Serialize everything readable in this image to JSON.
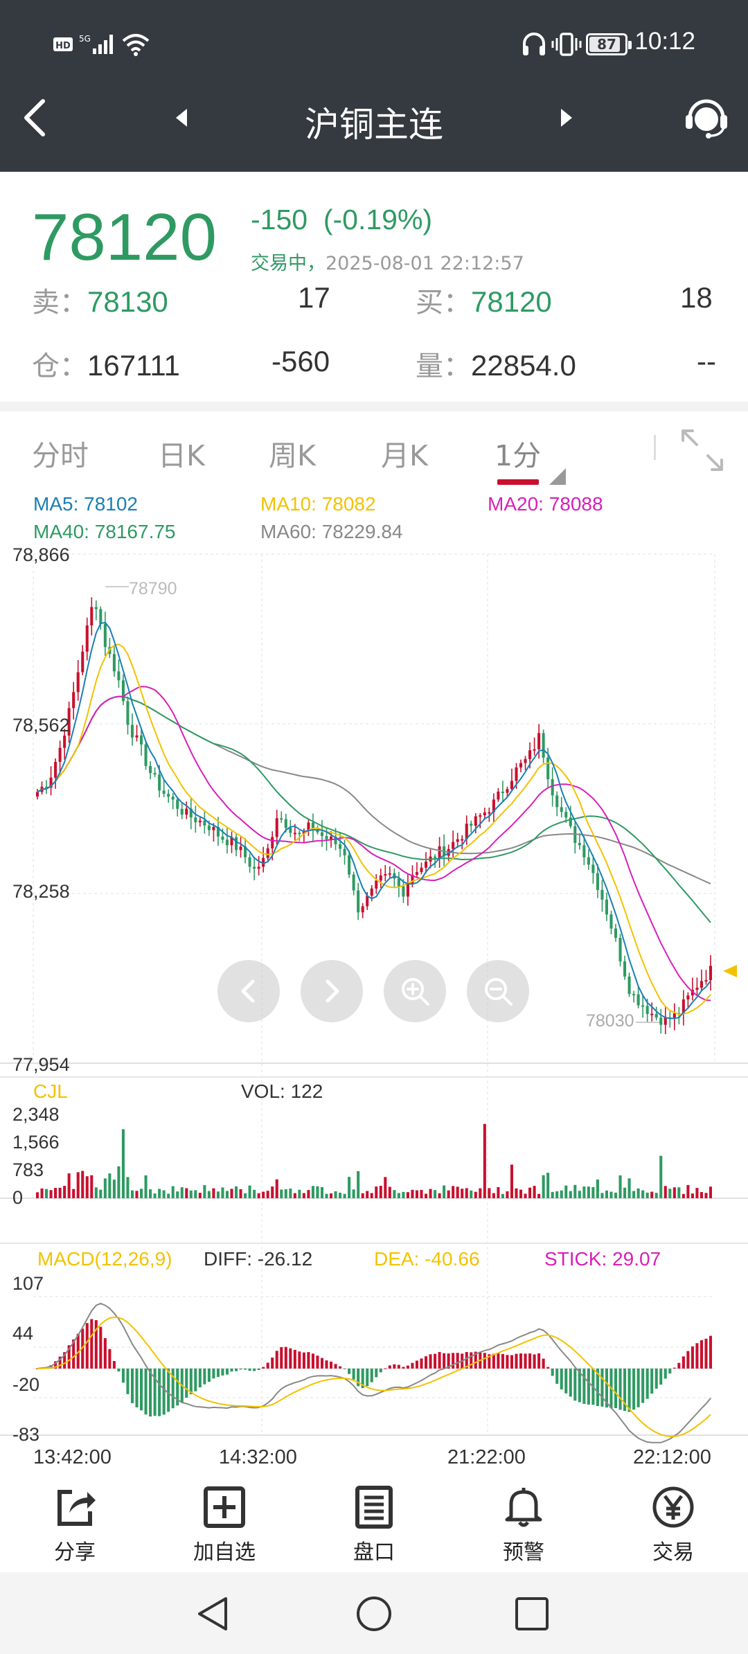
{
  "status_bar": {
    "time": "10:12",
    "battery": "87",
    "battery_level": 0.87,
    "icons": [
      "hd-icon",
      "5g-signal-icon",
      "wifi-icon",
      "headphones-icon",
      "vibrate-icon",
      "battery-icon"
    ]
  },
  "header": {
    "title": "沪铜主连",
    "back_icon": "back-arrow-icon",
    "prev_icon": "triangle-left-icon",
    "next_icon": "triangle-right-icon",
    "service_icon": "customer-service-icon"
  },
  "quote": {
    "price": "78120",
    "change": "-150",
    "change_pct": "(-0.19%)",
    "status": "交易中，",
    "datetime": "2025-08-01 22:12:57",
    "sell_label": "卖：",
    "sell_price": "78130",
    "sell_qty": "17",
    "buy_label": "买：",
    "buy_price": "78120",
    "buy_qty": "18",
    "oi_label": "仓：",
    "oi_value": "167111",
    "oi_change": "-560",
    "vol_label": "量：",
    "vol_value": "22854.0",
    "vol_extra": "--"
  },
  "tabs": [
    {
      "label": "分时"
    },
    {
      "label": "日K"
    },
    {
      "label": "周K"
    },
    {
      "label": "月K"
    },
    {
      "label": "1分",
      "active": true
    }
  ],
  "ma_legend": {
    "ma5": "MA5: 78102",
    "ma10": "MA10: 78082",
    "ma20": "MA20: 78088",
    "ma40": "MA40: 78167.75",
    "ma60": "MA60: 78229.84"
  },
  "colors": {
    "up": "#c8102e",
    "down": "#2e9a62",
    "ma5": "#1a7fb5",
    "ma10": "#f2c200",
    "ma20": "#d81fb8",
    "ma40": "#2e9a62",
    "ma60": "#888888"
  },
  "price_axis": {
    "max": "78,866",
    "upper_mid": "78,562",
    "lower_mid": "78,258",
    "min": "77,954",
    "high_mark": "78790",
    "low_mark": "78030"
  },
  "volume": {
    "title": "CJL",
    "vol_text": "VOL: 122",
    "axis": [
      "2,348",
      "1,566",
      "783",
      "0"
    ]
  },
  "macd": {
    "title": "MACD(12,26,9)",
    "diff": "DIFF: -26.12",
    "dea": "DEA: -40.66",
    "stick": "STICK: 29.07",
    "axis": [
      "107",
      "44",
      "-20",
      "-83"
    ]
  },
  "time_axis": [
    "13:42:00",
    "14:32:00",
    "21:22:00",
    "22:12:00"
  ],
  "chart_controls": [
    "chevron-left-icon",
    "chevron-right-icon",
    "zoom-in-icon",
    "zoom-out-icon"
  ],
  "bottom_nav": [
    {
      "label": "分享",
      "icon": "share-icon"
    },
    {
      "label": "加自选",
      "icon": "add-box-icon"
    },
    {
      "label": "盘口",
      "icon": "order-book-icon"
    },
    {
      "label": "预警",
      "icon": "bell-icon"
    },
    {
      "label": "交易",
      "icon": "yen-circle-icon"
    }
  ],
  "system_nav": [
    "back-triangle-icon",
    "home-circle-icon",
    "recents-square-icon"
  ],
  "chart_data": {
    "type": "candlestick",
    "y_range": [
      77954,
      78866
    ],
    "volume_range": [
      0,
      2348
    ],
    "macd_range": [
      -83,
      107
    ],
    "close_approx": [
      78440,
      78460,
      78520,
      78600,
      78700,
      78790,
      78700,
      78650,
      78560,
      78520,
      78470,
      78440,
      78420,
      78400,
      78390,
      78380,
      78360,
      78350,
      78330,
      78300,
      78320,
      78400,
      78380,
      78360,
      78380,
      78360,
      78350,
      78330,
      78230,
      78250,
      78280,
      78290,
      78260,
      78300,
      78310,
      78330,
      78340,
      78360,
      78380,
      78400,
      78420,
      78450,
      78480,
      78500,
      78540,
      78450,
      78400,
      78360,
      78330,
      78280,
      78220,
      78150,
      78080,
      78060,
      78040,
      78030,
      78040,
      78070,
      78100,
      78120
    ]
  }
}
